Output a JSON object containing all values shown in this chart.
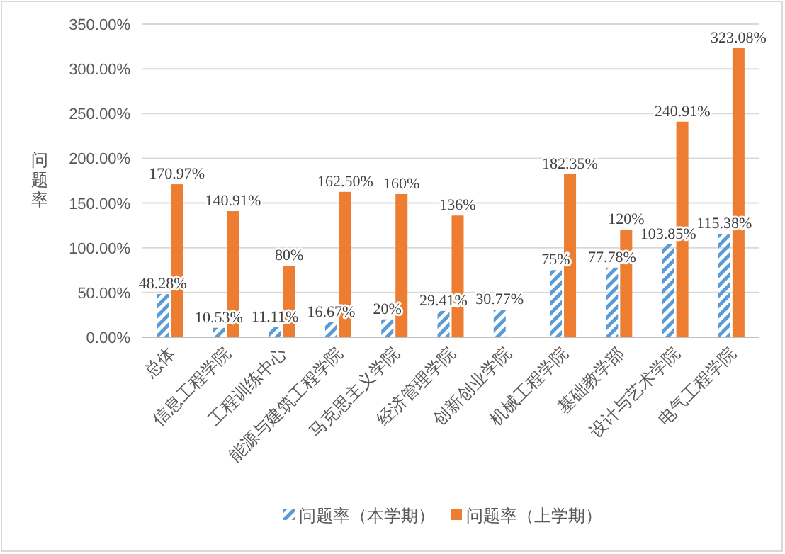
{
  "chart_data": {
    "type": "bar",
    "ylabel": "问题率",
    "categories": [
      "总体",
      "信息工程学院",
      "工程训练中心",
      "能源与建筑工程学院",
      "马克思主义学院",
      "经济管理学院",
      "创新创业学院",
      "机械工程学院",
      "基础教学部",
      "设计与艺术学院",
      "电气工程学院"
    ],
    "series": [
      {
        "name": "问题率（本学期）",
        "color": "#5b9bd5",
        "values": [
          48.28,
          10.53,
          11.11,
          16.67,
          20,
          29.41,
          30.77,
          75,
          77.78,
          103.85,
          115.38
        ],
        "value_labels": [
          "48.28%",
          "10.53%",
          "11.11%",
          "16.67%",
          "20%",
          "29.41%",
          "30.77%",
          "75%",
          "77.78%",
          "103.85%",
          "115.38%"
        ]
      },
      {
        "name": "问题率（上学期）",
        "color": "#ed7d31",
        "values": [
          170.97,
          140.91,
          80,
          162.5,
          160,
          136,
          null,
          182.35,
          120,
          240.91,
          323.08
        ],
        "value_labels": [
          "170.97%",
          "140.91%",
          "80%",
          "162.50%",
          "160%",
          "136%",
          null,
          "182.35%",
          "120%",
          "240.91%",
          "323.08%"
        ]
      }
    ],
    "ylim": [
      0,
      350
    ],
    "yticks": [
      {
        "value": 0,
        "label": "0.00%"
      },
      {
        "value": 50,
        "label": "50.00%"
      },
      {
        "value": 100,
        "label": "100.00%"
      },
      {
        "value": 150,
        "label": "150.00%"
      },
      {
        "value": 200,
        "label": "200.00%"
      },
      {
        "value": 250,
        "label": "250.00%"
      },
      {
        "value": 300,
        "label": "300.00%"
      },
      {
        "value": 350,
        "label": "350.00%"
      }
    ],
    "grid": "y",
    "legend": "bottom"
  }
}
